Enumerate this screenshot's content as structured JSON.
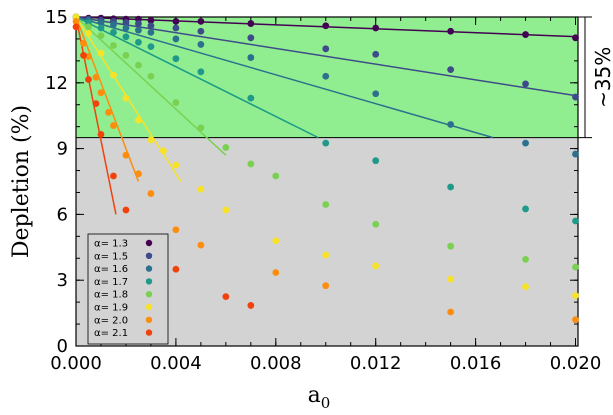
{
  "chart_data": {
    "type": "scatter",
    "xlabel": "a",
    "xlabel_sub": "0",
    "ylabel": "Depletion (%)",
    "xlim": [
      0,
      0.0201
    ],
    "ylim": [
      0,
      15
    ],
    "x_ticks": [
      0,
      0.004,
      0.008,
      0.012,
      0.016,
      0.02
    ],
    "x_tick_labels": [
      "0.000",
      "0.004",
      "0.008",
      "0.012",
      "0.016",
      "0.020"
    ],
    "y_ticks": [
      0,
      3,
      6,
      9,
      12,
      15
    ],
    "y_tick_labels": [
      "0",
      "3",
      "6",
      "9",
      "12",
      "15"
    ],
    "regions": [
      {
        "name": "upper",
        "y_from": 9.5,
        "y_to": 15,
        "color": "#90ee90"
      },
      {
        "name": "lower",
        "y_from": 0,
        "y_to": 9.5,
        "color": "#d3d3d3"
      }
    ],
    "annotation": {
      "text": "~35%",
      "y_from": 9.5,
      "y_to": 15
    },
    "legend_position": "bottom-left",
    "series": [
      {
        "name": "α= 1.3",
        "color": "#440154",
        "x": [
          0,
          0.0005,
          0.001,
          0.0015,
          0.002,
          0.0025,
          0.003,
          0.004,
          0.005,
          0.007,
          0.01,
          0.012,
          0.015,
          0.018,
          0.02
        ],
        "y": [
          15,
          14.95,
          14.95,
          14.92,
          14.9,
          14.9,
          14.85,
          14.8,
          14.8,
          14.7,
          14.6,
          14.5,
          14.35,
          14.2,
          14.05
        ],
        "fit": [
          [
            0,
            15
          ],
          [
            0.0201,
            14.1
          ]
        ]
      },
      {
        "name": "α= 1.5",
        "color": "#3e4a89",
        "x": [
          0,
          0.0005,
          0.001,
          0.0015,
          0.002,
          0.0025,
          0.003,
          0.004,
          0.005,
          0.007,
          0.01,
          0.012,
          0.015,
          0.018,
          0.02
        ],
        "y": [
          15,
          14.9,
          14.85,
          14.8,
          14.75,
          14.7,
          14.6,
          14.5,
          14.35,
          14.05,
          13.55,
          13.3,
          12.6,
          11.95,
          11.35
        ],
        "fit": [
          [
            0,
            15
          ],
          [
            0.0201,
            11.4
          ]
        ]
      },
      {
        "name": "α= 1.6",
        "color": "#2d708e",
        "x": [
          0,
          0.0005,
          0.001,
          0.0015,
          0.002,
          0.0025,
          0.003,
          0.004,
          0.005,
          0.007,
          0.01,
          0.012,
          0.015,
          0.018,
          0.02
        ],
        "y": [
          15,
          14.85,
          14.75,
          14.65,
          14.5,
          14.4,
          14.3,
          14.0,
          13.75,
          13.15,
          12.3,
          11.5,
          10.1,
          9.25,
          8.75
        ],
        "fit": [
          [
            0,
            15
          ],
          [
            0.0167,
            9.5
          ]
        ]
      },
      {
        "name": "α= 1.7",
        "color": "#1f9a8a",
        "x": [
          0,
          0.0005,
          0.001,
          0.0015,
          0.002,
          0.0025,
          0.003,
          0.004,
          0.005,
          0.007,
          0.01,
          0.012,
          0.015,
          0.018,
          0.02
        ],
        "y": [
          15,
          14.75,
          14.5,
          14.3,
          14.1,
          13.85,
          13.65,
          13.1,
          12.5,
          11.3,
          9.25,
          8.45,
          7.25,
          6.25,
          5.7
        ],
        "fit": [
          [
            0,
            15
          ],
          [
            0.0097,
            9.5
          ]
        ]
      },
      {
        "name": "α= 1.8",
        "color": "#7ad151",
        "x": [
          0,
          0.0005,
          0.001,
          0.0015,
          0.002,
          0.0025,
          0.003,
          0.004,
          0.005,
          0.006,
          0.007,
          0.008,
          0.01,
          0.012,
          0.015,
          0.018,
          0.02
        ],
        "y": [
          15,
          14.55,
          14.15,
          13.7,
          13.25,
          12.8,
          12.3,
          11.1,
          9.95,
          9.05,
          8.3,
          7.75,
          6.45,
          5.55,
          4.55,
          3.95,
          3.6
        ],
        "fit": [
          [
            0,
            15
          ],
          [
            0.006,
            8.7
          ]
        ]
      },
      {
        "name": "α= 1.9",
        "color": "#f7e225",
        "x": [
          0,
          0.0005,
          0.001,
          0.0015,
          0.002,
          0.0025,
          0.003,
          0.0035,
          0.004,
          0.005,
          0.006,
          0.008,
          0.01,
          0.012,
          0.015,
          0.018,
          0.02
        ],
        "y": [
          15,
          14.25,
          13.35,
          12.35,
          11.3,
          10.3,
          9.4,
          8.9,
          8.25,
          7.15,
          6.2,
          4.8,
          4.15,
          3.65,
          3.05,
          2.7,
          2.3
        ],
        "fit": [
          [
            0,
            15
          ],
          [
            0.0042,
            7.5
          ]
        ]
      },
      {
        "name": "α= 2.0",
        "color": "#fd8d0c",
        "x": [
          0,
          0.0003,
          0.0005,
          0.0008,
          0.001,
          0.0013,
          0.0015,
          0.002,
          0.0025,
          0.003,
          0.004,
          0.005,
          0.008,
          0.01,
          0.015,
          0.02
        ],
        "y": [
          14.8,
          13.8,
          13.2,
          12.25,
          11.55,
          10.65,
          10.05,
          8.7,
          7.85,
          6.95,
          5.3,
          4.6,
          3.35,
          2.75,
          1.55,
          1.2
        ],
        "fit": [
          [
            0,
            15
          ],
          [
            0.0025,
            7.5
          ]
        ]
      },
      {
        "name": "α= 2.1",
        "color": "#f1420b",
        "x": [
          0,
          0.0003,
          0.0005,
          0.0008,
          0.001,
          0.0015,
          0.002,
          0.004,
          0.006,
          0.007
        ],
        "y": [
          14.55,
          13.25,
          12.15,
          11.05,
          9.65,
          7.75,
          6.2,
          3.5,
          2.25,
          1.85
        ],
        "fit": [
          [
            0,
            15
          ],
          [
            0.0016,
            6.0
          ]
        ]
      }
    ]
  }
}
